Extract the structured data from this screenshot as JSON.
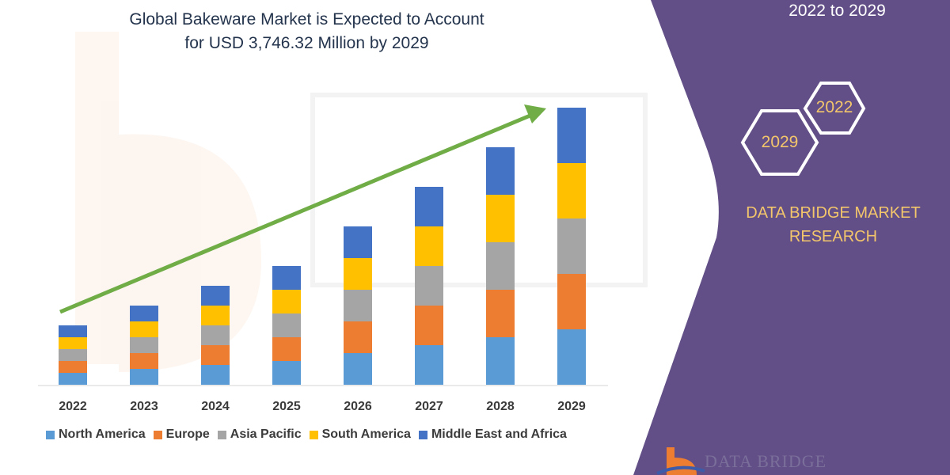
{
  "header": {
    "title_line1": "Global Bakeware Market is Expected to Account",
    "title_line2": "for USD 3,746.32 Million by 2029"
  },
  "side_panel": {
    "forecast_range": "2022 to 2029",
    "hex_start": "2022",
    "hex_end": "2029",
    "brand_line1": "DATA BRIDGE MARKET",
    "brand_line2": "RESEARCH",
    "logo_text": "DATA BRIDGE",
    "panel_color": "#634f87",
    "accent_color": "#f3c66b"
  },
  "chart_data": {
    "type": "bar",
    "stacked": true,
    "title": "",
    "xlabel": "",
    "ylabel": "",
    "y_axis_shown": false,
    "grid": false,
    "legend_position": "bottom",
    "trend_arrow": true,
    "trend_arrow_color": "#70ad47",
    "categories": [
      "2022",
      "2023",
      "2024",
      "2025",
      "2026",
      "2027",
      "2028",
      "2029"
    ],
    "series": [
      {
        "name": "North America",
        "color": "#5b9bd5",
        "values": [
          15,
          20,
          25,
          30,
          40,
          50,
          60,
          70
        ]
      },
      {
        "name": "Europe",
        "color": "#ed7d31",
        "values": [
          15,
          20,
          25,
          30,
          40,
          50,
          60,
          70
        ]
      },
      {
        "name": "Asia Pacific",
        "color": "#a5a5a5",
        "values": [
          15,
          20,
          25,
          30,
          40,
          50,
          60,
          70
        ]
      },
      {
        "name": "South America",
        "color": "#ffc000",
        "values": [
          15,
          20,
          25,
          30,
          40,
          50,
          60,
          70
        ]
      },
      {
        "name": "Middle East and Africa",
        "color": "#4472c4",
        "values": [
          15,
          20,
          25,
          30,
          40,
          50,
          60,
          70
        ]
      }
    ]
  }
}
